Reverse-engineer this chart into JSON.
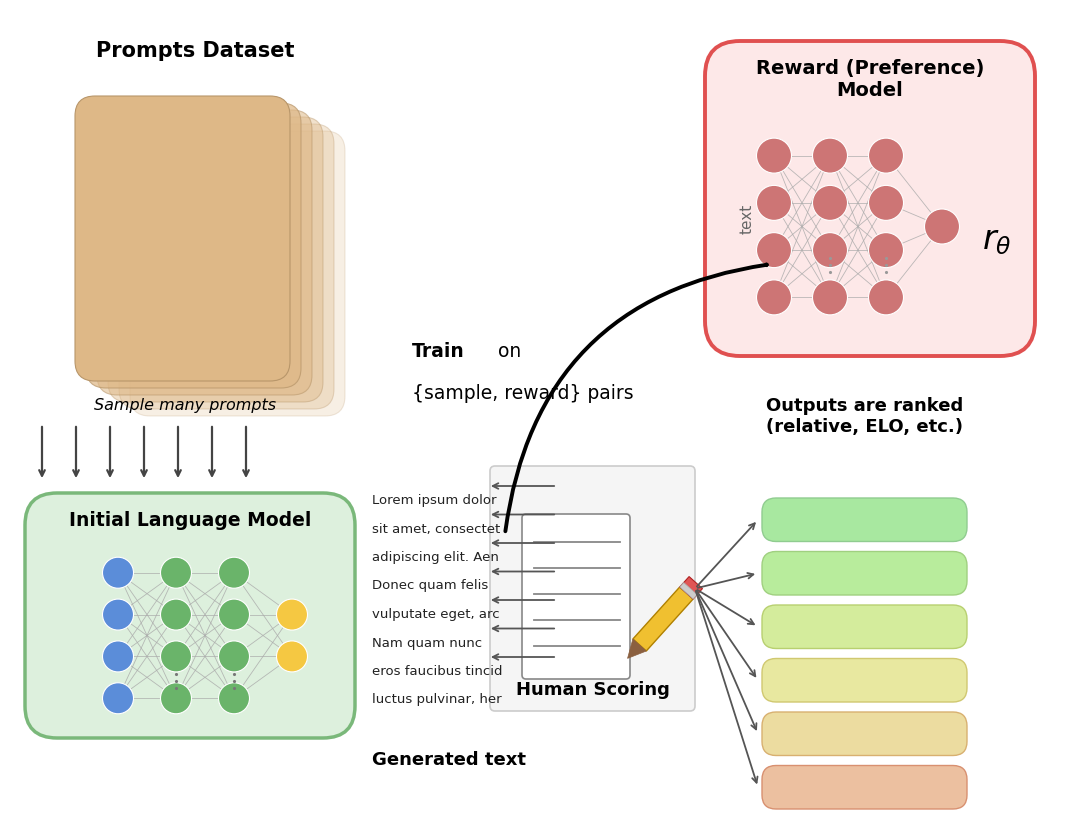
{
  "bg_color": "#ffffff",
  "prompts_dataset_title": "Prompts Dataset",
  "sample_many_prompts": "Sample many prompts",
  "reward_model_title": "Reward (Preference)\nModel",
  "initial_lm_title": "Initial Language Model",
  "generated_text_label": "Generated text",
  "human_scoring_label": "Human Scoring",
  "outputs_ranked_title": "Outputs are ranked\n(relative, ELO, etc.)",
  "lorem_lines": [
    "Lorem ipsum dolor",
    "sit amet, consectet",
    "adipiscing elit. Aen",
    "Donec quam felis",
    "vulputate eget, arc",
    "Nam quam nunc",
    "eros faucibus tincid",
    "luctus pulvinar, her"
  ],
  "card_color": "#deb887",
  "card_alpha_list": [
    0.22,
    0.32,
    0.42,
    0.55,
    0.72,
    1.0
  ],
  "green_box_fill": "#ddf0dd",
  "green_box_edge": "#7ab87a",
  "red_box_fill": "#fde8e8",
  "red_box_edge": "#e05050",
  "nn_node_green": "#6ab46a",
  "nn_node_blue": "#5b8dd9",
  "nn_node_yellow": "#f5c842",
  "nn_node_red": "#cd7575",
  "ranked_colors": [
    "#a8e8a0",
    "#b8ec9c",
    "#d4ec9c",
    "#e8e8a0",
    "#ecdca0",
    "#ecc0a0",
    "#ecaaaa"
  ],
  "ranked_edge_colors": [
    "#90cc90",
    "#a0d080",
    "#b8d070",
    "#d0c870",
    "#d8b070",
    "#d89070",
    "#d87070"
  ],
  "black": "#000000",
  "gray": "#606060",
  "white": "#ffffff"
}
